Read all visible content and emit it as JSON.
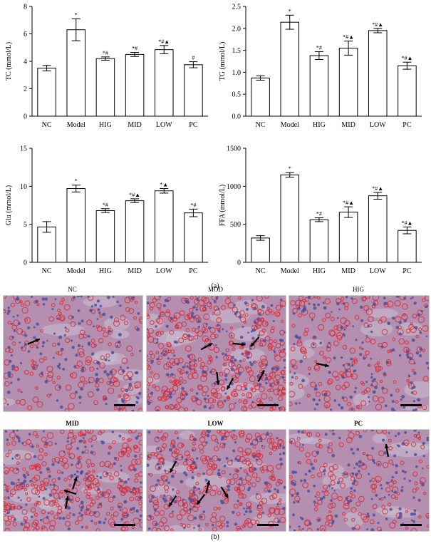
{
  "figure_labels": {
    "a": "(a)",
    "b": "(b)"
  },
  "chart_data": [
    {
      "type": "bar",
      "ylabel": "TC (mmol/L)",
      "categories": [
        "NC",
        "Model",
        "HIG",
        "MID",
        "LOW",
        "PC"
      ],
      "values": [
        3.5,
        6.3,
        4.2,
        4.5,
        4.85,
        3.75
      ],
      "errors": [
        0.2,
        0.8,
        0.12,
        0.15,
        0.3,
        0.22
      ],
      "annotations": [
        "",
        "*",
        "*#",
        "*#",
        "*#▲",
        "#"
      ],
      "ylim": [
        0,
        8
      ],
      "yticks": [
        0,
        2,
        4,
        6,
        8
      ],
      "ytick_labels": [
        "0",
        "2",
        "4",
        "6",
        "8"
      ]
    },
    {
      "type": "bar",
      "ylabel": "TG (mmol/L)",
      "categories": [
        "NC",
        "Model",
        "HIG",
        "MID",
        "LOW",
        "PC"
      ],
      "values": [
        0.87,
        2.14,
        1.38,
        1.55,
        1.95,
        1.15
      ],
      "errors": [
        0.05,
        0.16,
        0.09,
        0.16,
        0.05,
        0.08
      ],
      "annotations": [
        "",
        "*",
        "*#",
        "*#▲",
        "*#▲",
        "*#▲"
      ],
      "ylim": [
        0,
        2.5
      ],
      "yticks": [
        0,
        0.5,
        1.0,
        1.5,
        2.0,
        2.5
      ],
      "ytick_labels": [
        "0.0",
        "0.5",
        "1.0",
        "1.5",
        "2.0",
        "2.5"
      ]
    },
    {
      "type": "bar",
      "ylabel": "Glu (mmol/L)",
      "categories": [
        "NC",
        "Model",
        "HIG",
        "MID",
        "LOW",
        "PC"
      ],
      "values": [
        4.65,
        9.7,
        6.8,
        8.1,
        9.4,
        6.5
      ],
      "errors": [
        0.7,
        0.45,
        0.25,
        0.25,
        0.3,
        0.5
      ],
      "annotations": [
        "",
        "*",
        "*#",
        "*#▲",
        "*▲",
        "*#"
      ],
      "ylim": [
        0,
        15
      ],
      "yticks": [
        0,
        5,
        10,
        15
      ],
      "ytick_labels": [
        "0",
        "5",
        "10",
        "15"
      ]
    },
    {
      "type": "bar",
      "ylabel": "FFA (mmol/L)",
      "categories": [
        "NC",
        "Model",
        "HIG",
        "MID",
        "LOW",
        "PC"
      ],
      "values": [
        320,
        1150,
        560,
        660,
        875,
        420
      ],
      "errors": [
        30,
        30,
        25,
        70,
        45,
        45
      ],
      "annotations": [
        "",
        "*",
        "*#",
        "*#▲",
        "*#▲",
        "*#▲"
      ],
      "ylim": [
        0,
        1500
      ],
      "yticks": [
        0,
        500,
        1000,
        1500
      ],
      "ytick_labels": [
        "0",
        "500",
        "1000",
        "1500"
      ]
    }
  ],
  "micrographs": [
    {
      "title": "NC",
      "bold": false,
      "density": 0.25,
      "arrows": 1
    },
    {
      "title": "MOD",
      "bold": false,
      "density": 0.75,
      "arrows": 6
    },
    {
      "title": "HIG",
      "bold": false,
      "density": 0.3,
      "arrows": 1
    },
    {
      "title": "MID",
      "bold": true,
      "density": 0.55,
      "arrows": 3
    },
    {
      "title": "LOW",
      "bold": true,
      "density": 0.5,
      "arrows": 5
    },
    {
      "title": "PC",
      "bold": true,
      "density": 0.2,
      "arrows": 1
    }
  ],
  "colors": {
    "tissue_base": "#b58fb0",
    "nucleus": "#4e4f9a",
    "lipid": "#d9222a",
    "gap": "#c9bfd2",
    "arrow": "#000000"
  }
}
